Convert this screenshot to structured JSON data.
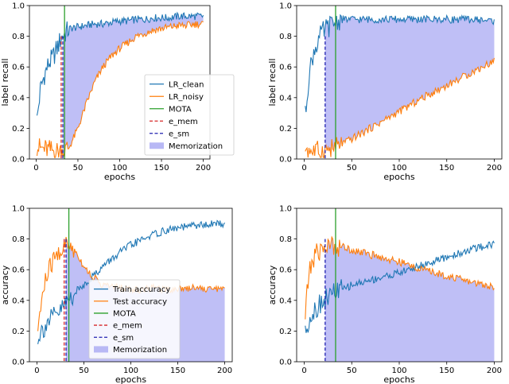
{
  "colors": {
    "clean": "#1f77b4",
    "noisy": "#ff7f0e",
    "mota": "#2ca02c",
    "e_mem": "#d62728",
    "e_sm": "#2020b0",
    "memorization_fill": "#b8b8f5"
  },
  "chart_data": [
    {
      "type": "line",
      "xlabel": "epochs",
      "ylabel": "label recall",
      "xlim": [
        -8,
        208
      ],
      "ylim": [
        0,
        1.0
      ],
      "xticks": [
        "0",
        "50",
        "100",
        "150",
        "200"
      ],
      "yticks": [
        "0.0",
        "0.2",
        "0.4",
        "0.6",
        "0.8",
        "1.0"
      ],
      "legend": "center-right",
      "grid": false,
      "series": [
        {
          "name": "LR_clean",
          "color_key": "clean",
          "x": [
            1,
            5,
            10,
            15,
            20,
            25,
            30,
            35,
            40,
            50,
            60,
            70,
            80,
            90,
            100,
            110,
            120,
            130,
            140,
            150,
            160,
            170,
            180,
            190,
            200
          ],
          "y": [
            0.25,
            0.45,
            0.55,
            0.62,
            0.66,
            0.72,
            0.79,
            0.82,
            0.85,
            0.86,
            0.87,
            0.88,
            0.88,
            0.89,
            0.9,
            0.9,
            0.91,
            0.91,
            0.92,
            0.92,
            0.92,
            0.93,
            0.93,
            0.93,
            0.93
          ]
        },
        {
          "name": "LR_noisy",
          "color_key": "noisy",
          "x": [
            1,
            5,
            10,
            15,
            20,
            25,
            30,
            33,
            40,
            50,
            60,
            70,
            80,
            90,
            100,
            110,
            120,
            130,
            140,
            150,
            160,
            170,
            180,
            190,
            200
          ],
          "y": [
            0.08,
            0.07,
            0.065,
            0.06,
            0.055,
            0.05,
            0.05,
            0.05,
            0.08,
            0.2,
            0.36,
            0.5,
            0.6,
            0.67,
            0.72,
            0.76,
            0.8,
            0.82,
            0.84,
            0.85,
            0.86,
            0.87,
            0.87,
            0.88,
            0.88
          ]
        }
      ],
      "vlines": [
        {
          "name": "MOTA",
          "x": 34,
          "color_key": "mota",
          "style": "solid"
        },
        {
          "name": "e_mem",
          "x": 30,
          "color_key": "e_mem",
          "style": "dashed"
        },
        {
          "name": "e_sm",
          "x": 32,
          "color_key": "e_sm",
          "style": "dashed"
        }
      ],
      "fill": {
        "name": "Memorization",
        "from_x": 32,
        "to_x": 200,
        "between": [
          "LR_clean",
          "LR_noisy"
        ]
      }
    },
    {
      "type": "line",
      "xlabel": "epochs",
      "ylabel": "label recall",
      "xlim": [
        -8,
        208
      ],
      "ylim": [
        0,
        1.0
      ],
      "xticks": [
        "0",
        "50",
        "100",
        "150",
        "200"
      ],
      "yticks": [
        "0.0",
        "0.2",
        "0.4",
        "0.6",
        "0.8",
        "1.0"
      ],
      "grid": false,
      "series": [
        {
          "name": "LR_clean",
          "color_key": "clean",
          "x": [
            1,
            5,
            10,
            15,
            20,
            25,
            30,
            35,
            40,
            50,
            75,
            100,
            125,
            150,
            175,
            200
          ],
          "y": [
            0.28,
            0.55,
            0.7,
            0.78,
            0.83,
            0.86,
            0.88,
            0.9,
            0.91,
            0.91,
            0.91,
            0.91,
            0.91,
            0.91,
            0.91,
            0.9
          ]
        },
        {
          "name": "LR_noisy",
          "color_key": "noisy",
          "x": [
            1,
            5,
            10,
            15,
            20,
            25,
            30,
            35,
            40,
            50,
            75,
            100,
            125,
            150,
            175,
            200
          ],
          "y": [
            0.08,
            0.06,
            0.05,
            0.05,
            0.05,
            0.06,
            0.07,
            0.08,
            0.1,
            0.13,
            0.22,
            0.31,
            0.4,
            0.48,
            0.56,
            0.64
          ]
        }
      ],
      "vlines": [
        {
          "name": "MOTA",
          "x": 33,
          "color_key": "mota",
          "style": "solid"
        },
        {
          "name": "e_sm",
          "x": 22,
          "color_key": "e_sm",
          "style": "dashed"
        }
      ],
      "fill": {
        "name": "Memorization",
        "from_x": 22,
        "to_x": 200,
        "between": [
          "LR_clean",
          "LR_noisy"
        ]
      }
    },
    {
      "type": "line",
      "xlabel": "epochs",
      "ylabel": "accuracy",
      "xlim": [
        -8,
        208
      ],
      "ylim": [
        0,
        1.0
      ],
      "xticks": [
        "0",
        "50",
        "100",
        "150",
        "200"
      ],
      "yticks": [
        "0.0",
        "0.2",
        "0.4",
        "0.6",
        "0.8",
        "1.0"
      ],
      "legend": "center",
      "grid": false,
      "series": [
        {
          "name": "Train accuracy",
          "color_key": "clean",
          "x": [
            1,
            5,
            10,
            15,
            20,
            25,
            30,
            35,
            40,
            50,
            60,
            70,
            80,
            90,
            100,
            110,
            120,
            130,
            140,
            150,
            160,
            170,
            180,
            190,
            200
          ],
          "y": [
            0.17,
            0.2,
            0.25,
            0.28,
            0.3,
            0.33,
            0.37,
            0.41,
            0.45,
            0.5,
            0.56,
            0.62,
            0.67,
            0.72,
            0.76,
            0.79,
            0.82,
            0.84,
            0.86,
            0.87,
            0.88,
            0.89,
            0.89,
            0.9,
            0.9
          ]
        },
        {
          "name": "Test accuracy",
          "color_key": "noisy",
          "x": [
            1,
            5,
            10,
            15,
            20,
            25,
            30,
            35,
            40,
            45,
            50,
            60,
            70,
            80,
            90,
            100,
            110,
            120,
            130,
            140,
            150,
            160,
            170,
            180,
            190,
            200
          ],
          "y": [
            0.22,
            0.4,
            0.55,
            0.63,
            0.68,
            0.72,
            0.76,
            0.75,
            0.73,
            0.68,
            0.62,
            0.55,
            0.5,
            0.49,
            0.48,
            0.47,
            0.47,
            0.48,
            0.48,
            0.47,
            0.48,
            0.48,
            0.49,
            0.47,
            0.48,
            0.47
          ]
        }
      ],
      "vlines": [
        {
          "name": "MOTA",
          "x": 34,
          "color_key": "mota",
          "style": "solid"
        },
        {
          "name": "e_mem",
          "x": 29,
          "color_key": "e_mem",
          "style": "dashed"
        },
        {
          "name": "e_sm",
          "x": 31,
          "color_key": "e_sm",
          "style": "dashed"
        }
      ],
      "fill": {
        "name": "Memorization",
        "from_x": 31,
        "to_x": 200,
        "between": [
          "Test accuracy",
          "zero"
        ]
      }
    },
    {
      "type": "line",
      "xlabel": "epochs",
      "ylabel": "accuracy",
      "xlim": [
        -8,
        208
      ],
      "ylim": [
        0,
        1.0
      ],
      "xticks": [
        "0",
        "50",
        "100",
        "150",
        "200"
      ],
      "yticks": [
        "0.0",
        "0.2",
        "0.4",
        "0.6",
        "0.8",
        "1.0"
      ],
      "grid": false,
      "series": [
        {
          "name": "Train accuracy",
          "color_key": "clean",
          "x": [
            1,
            5,
            10,
            15,
            20,
            25,
            30,
            40,
            50,
            75,
            100,
            125,
            150,
            175,
            200
          ],
          "y": [
            0.18,
            0.28,
            0.33,
            0.37,
            0.4,
            0.42,
            0.45,
            0.47,
            0.5,
            0.54,
            0.58,
            0.63,
            0.68,
            0.73,
            0.77
          ]
        },
        {
          "name": "Test accuracy",
          "color_key": "noisy",
          "x": [
            1,
            5,
            10,
            15,
            20,
            25,
            30,
            40,
            50,
            75,
            100,
            125,
            150,
            175,
            200
          ],
          "y": [
            0.3,
            0.58,
            0.68,
            0.72,
            0.74,
            0.75,
            0.76,
            0.75,
            0.73,
            0.69,
            0.65,
            0.6,
            0.56,
            0.52,
            0.49
          ]
        }
      ],
      "vlines": [
        {
          "name": "MOTA",
          "x": 33,
          "color_key": "mota",
          "style": "solid"
        },
        {
          "name": "e_sm",
          "x": 22,
          "color_key": "e_sm",
          "style": "dashed"
        }
      ],
      "fill": {
        "name": "Memorization",
        "from_x": 22,
        "to_x": 200,
        "between": [
          "Test accuracy",
          "zero"
        ]
      }
    }
  ]
}
